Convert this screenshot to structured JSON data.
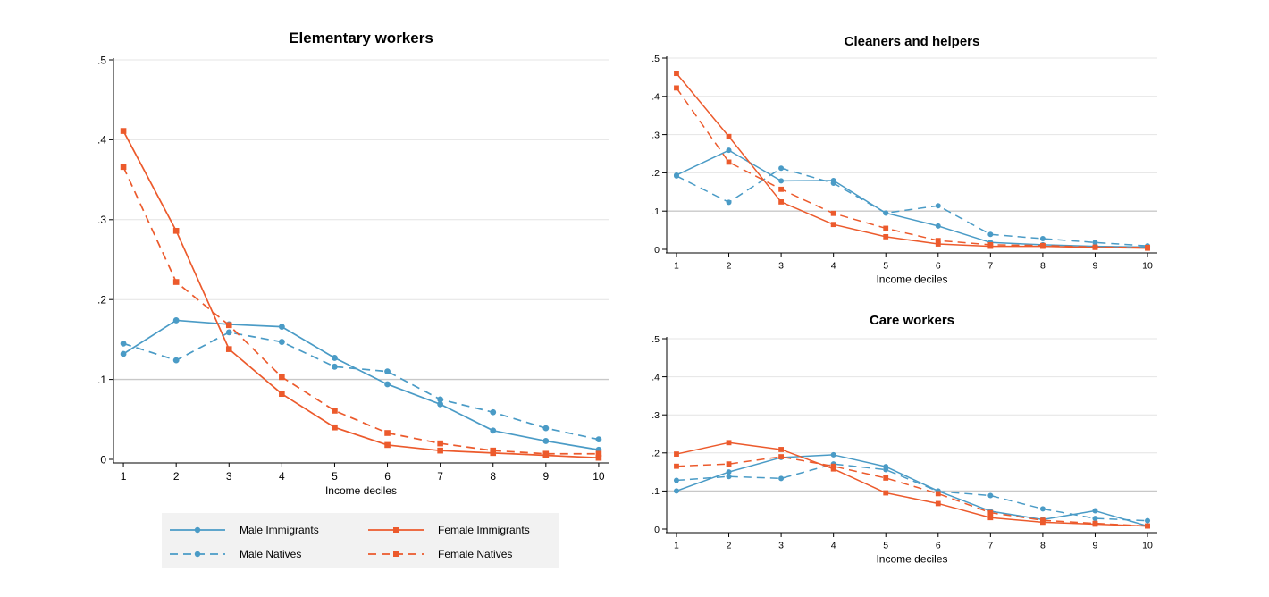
{
  "figure": {
    "legend": {
      "entries": [
        {
          "label": "Male Immigrants",
          "series": "male_immigrants"
        },
        {
          "label": "Female Immigrants",
          "series": "female_immigrants"
        },
        {
          "label": "Male Natives",
          "series": "male_natives"
        },
        {
          "label": "Female Natives",
          "series": "female_natives"
        }
      ]
    },
    "colors": {
      "male": "#4a9bc6",
      "female": "#ec5a2c",
      "grid": "#e4e4e4",
      "refline": "#c8c8c8",
      "legend_bg": "#f2f2f2"
    }
  },
  "chart_data": [
    {
      "id": "elementary",
      "type": "line",
      "title": "Elementary workers",
      "xlabel": "Income deciles",
      "ylabel": "",
      "x": [
        1,
        2,
        3,
        4,
        5,
        6,
        7,
        8,
        9,
        10
      ],
      "xticks": [
        "1",
        "2",
        "3",
        "4",
        "5",
        "6",
        "7",
        "8",
        "9",
        "10"
      ],
      "ylim": [
        0,
        0.5
      ],
      "yticks": [
        0,
        0.1,
        0.2,
        0.3,
        0.4,
        0.5
      ],
      "ytick_labels": [
        "0",
        ".1",
        ".2",
        ".3",
        ".4",
        ".5"
      ],
      "grid": true,
      "series": [
        {
          "name": "Male Immigrants",
          "key": "male_immigrants",
          "values": [
            0.132,
            0.174,
            0.169,
            0.166,
            0.127,
            0.094,
            0.069,
            0.036,
            0.023,
            0.012
          ]
        },
        {
          "name": "Male Natives",
          "key": "male_natives",
          "values": [
            0.145,
            0.124,
            0.159,
            0.147,
            0.116,
            0.11,
            0.075,
            0.059,
            0.039,
            0.025
          ]
        },
        {
          "name": "Female Immigrants",
          "key": "female_immigrants",
          "values": [
            0.411,
            0.286,
            0.138,
            0.082,
            0.04,
            0.018,
            0.011,
            0.008,
            0.005,
            0.002
          ]
        },
        {
          "name": "Female Natives",
          "key": "female_natives",
          "values": [
            0.366,
            0.222,
            0.168,
            0.103,
            0.061,
            0.033,
            0.02,
            0.011,
            0.007,
            0.007
          ]
        }
      ]
    },
    {
      "id": "cleaners",
      "type": "line",
      "title": "Cleaners and helpers",
      "xlabel": "Income deciles",
      "ylabel": "",
      "x": [
        1,
        2,
        3,
        4,
        5,
        6,
        7,
        8,
        9,
        10
      ],
      "xticks": [
        "1",
        "2",
        "3",
        "4",
        "5",
        "6",
        "7",
        "8",
        "9",
        "10"
      ],
      "ylim": [
        0,
        0.5
      ],
      "yticks": [
        0,
        0.1,
        0.2,
        0.3,
        0.4,
        0.5
      ],
      "ytick_labels": [
        "0",
        ".1",
        ".2",
        ".3",
        ".4",
        ".5"
      ],
      "grid": true,
      "series": [
        {
          "name": "Male Immigrants",
          "key": "male_immigrants",
          "values": [
            0.194,
            0.259,
            0.179,
            0.18,
            0.095,
            0.061,
            0.018,
            0.012,
            0.008,
            0.006
          ]
        },
        {
          "name": "Male Natives",
          "key": "male_natives",
          "values": [
            0.192,
            0.123,
            0.212,
            0.173,
            0.095,
            0.114,
            0.039,
            0.028,
            0.018,
            0.009
          ]
        },
        {
          "name": "Female Immigrants",
          "key": "female_immigrants",
          "values": [
            0.46,
            0.295,
            0.124,
            0.065,
            0.033,
            0.014,
            0.008,
            0.008,
            0.005,
            0.003
          ]
        },
        {
          "name": "Female Natives",
          "key": "female_natives",
          "values": [
            0.422,
            0.228,
            0.157,
            0.094,
            0.055,
            0.023,
            0.012,
            0.01,
            0.006,
            0.005
          ]
        }
      ]
    },
    {
      "id": "care",
      "type": "line",
      "title": "Care workers",
      "xlabel": "Income deciles",
      "ylabel": "",
      "x": [
        1,
        2,
        3,
        4,
        5,
        6,
        7,
        8,
        9,
        10
      ],
      "xticks": [
        "1",
        "2",
        "3",
        "4",
        "5",
        "6",
        "7",
        "8",
        "9",
        "10"
      ],
      "ylim": [
        0,
        0.5
      ],
      "yticks": [
        0,
        0.1,
        0.2,
        0.3,
        0.4,
        0.5
      ],
      "ytick_labels": [
        "0",
        ".1",
        ".2",
        ".3",
        ".4",
        ".5"
      ],
      "grid": true,
      "series": [
        {
          "name": "Male Immigrants",
          "key": "male_immigrants",
          "values": [
            0.1,
            0.15,
            0.188,
            0.195,
            0.164,
            0.1,
            0.047,
            0.025,
            0.048,
            0.008
          ]
        },
        {
          "name": "Male Natives",
          "key": "male_natives",
          "values": [
            0.128,
            0.138,
            0.133,
            0.171,
            0.156,
            0.099,
            0.088,
            0.053,
            0.028,
            0.022
          ]
        },
        {
          "name": "Female Immigrants",
          "key": "female_immigrants",
          "values": [
            0.197,
            0.227,
            0.209,
            0.158,
            0.095,
            0.067,
            0.03,
            0.018,
            0.013,
            0.008
          ]
        },
        {
          "name": "Female Natives",
          "key": "female_natives",
          "values": [
            0.165,
            0.171,
            0.19,
            0.165,
            0.134,
            0.093,
            0.043,
            0.023,
            0.015,
            0.008
          ]
        }
      ]
    }
  ]
}
